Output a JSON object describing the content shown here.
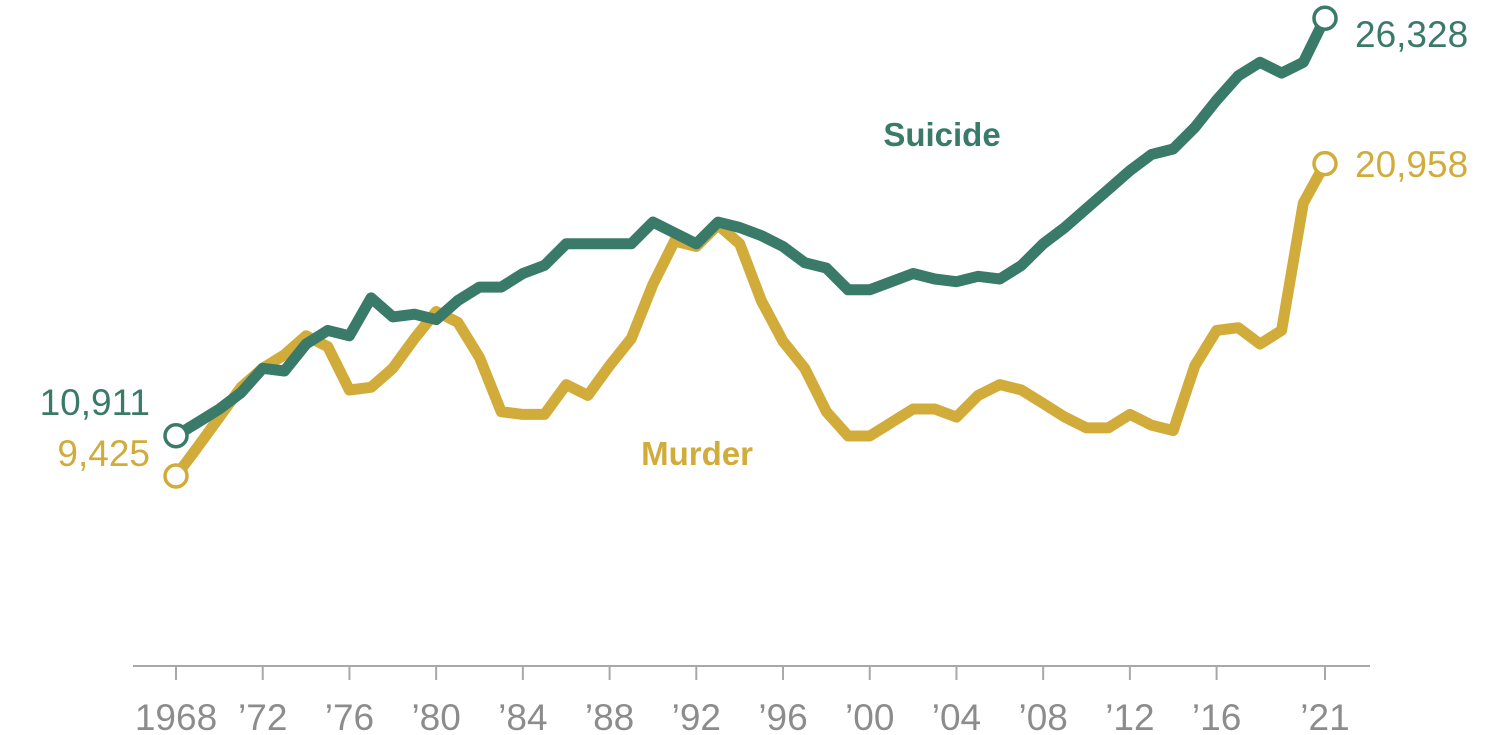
{
  "chart_data": {
    "type": "line",
    "title": "",
    "xlabel": "",
    "ylabel": "",
    "x": [
      1968,
      1969,
      1970,
      1971,
      1972,
      1973,
      1974,
      1975,
      1976,
      1977,
      1978,
      1979,
      1980,
      1981,
      1982,
      1983,
      1984,
      1985,
      1986,
      1987,
      1988,
      1989,
      1990,
      1991,
      1992,
      1993,
      1994,
      1995,
      1996,
      1997,
      1998,
      1999,
      2000,
      2001,
      2002,
      2003,
      2004,
      2005,
      2006,
      2007,
      2008,
      2009,
      2010,
      2011,
      2012,
      2013,
      2014,
      2015,
      2016,
      2017,
      2018,
      2019,
      2020,
      2021
    ],
    "xlim": [
      1968,
      2021
    ],
    "ylim": [
      3000,
      27000
    ],
    "grid": false,
    "legend": "none",
    "x_ticks": [
      {
        "value": 1968,
        "label": "1968"
      },
      {
        "value": 1972,
        "label": "’72"
      },
      {
        "value": 1976,
        "label": "’76"
      },
      {
        "value": 1980,
        "label": "’80"
      },
      {
        "value": 1984,
        "label": "’84"
      },
      {
        "value": 1988,
        "label": "’88"
      },
      {
        "value": 1992,
        "label": "’92"
      },
      {
        "value": 1996,
        "label": "’96"
      },
      {
        "value": 2000,
        "label": "’00"
      },
      {
        "value": 2004,
        "label": "’04"
      },
      {
        "value": 2008,
        "label": "’08"
      },
      {
        "value": 2012,
        "label": "’12"
      },
      {
        "value": 2016,
        "label": "’16"
      },
      {
        "value": 2021,
        "label": "’21"
      }
    ],
    "series": [
      {
        "name": "Suicide",
        "color": "#3a7a68",
        "start_label": "10,911",
        "end_label": "26,328",
        "values": [
          10911,
          11400,
          11900,
          12500,
          13400,
          13300,
          14300,
          14800,
          14600,
          16000,
          15300,
          15400,
          15200,
          15900,
          16400,
          16400,
          16900,
          17200,
          18000,
          18000,
          18000,
          18000,
          18800,
          18400,
          18000,
          18800,
          18600,
          18300,
          17900,
          17300,
          17100,
          16300,
          16300,
          16600,
          16900,
          16700,
          16600,
          16800,
          16700,
          17200,
          18000,
          18600,
          19300,
          20000,
          20700,
          21300,
          21500,
          22300,
          23300,
          24200,
          24700,
          24300,
          24700,
          26328
        ]
      },
      {
        "name": "Murder",
        "color": "#d2ac3a",
        "start_label": "9,425",
        "end_label": "20,958",
        "values": [
          9425,
          10500,
          11600,
          12700,
          13400,
          13900,
          14600,
          14200,
          12600,
          12700,
          13400,
          14500,
          15500,
          15100,
          13800,
          11800,
          11700,
          11700,
          12800,
          12400,
          13500,
          14500,
          16500,
          18100,
          17900,
          18700,
          18000,
          15900,
          14400,
          13400,
          11800,
          10900,
          10900,
          11400,
          11900,
          11900,
          11600,
          12400,
          12800,
          12600,
          12100,
          11600,
          11200,
          11200,
          11700,
          11300,
          11100,
          13500,
          14800,
          14900,
          14300,
          14800,
          19500,
          20958
        ]
      }
    ],
    "annotations": [
      {
        "text": "Suicide",
        "series": "Suicide"
      },
      {
        "text": "Murder",
        "series": "Murder"
      }
    ]
  }
}
